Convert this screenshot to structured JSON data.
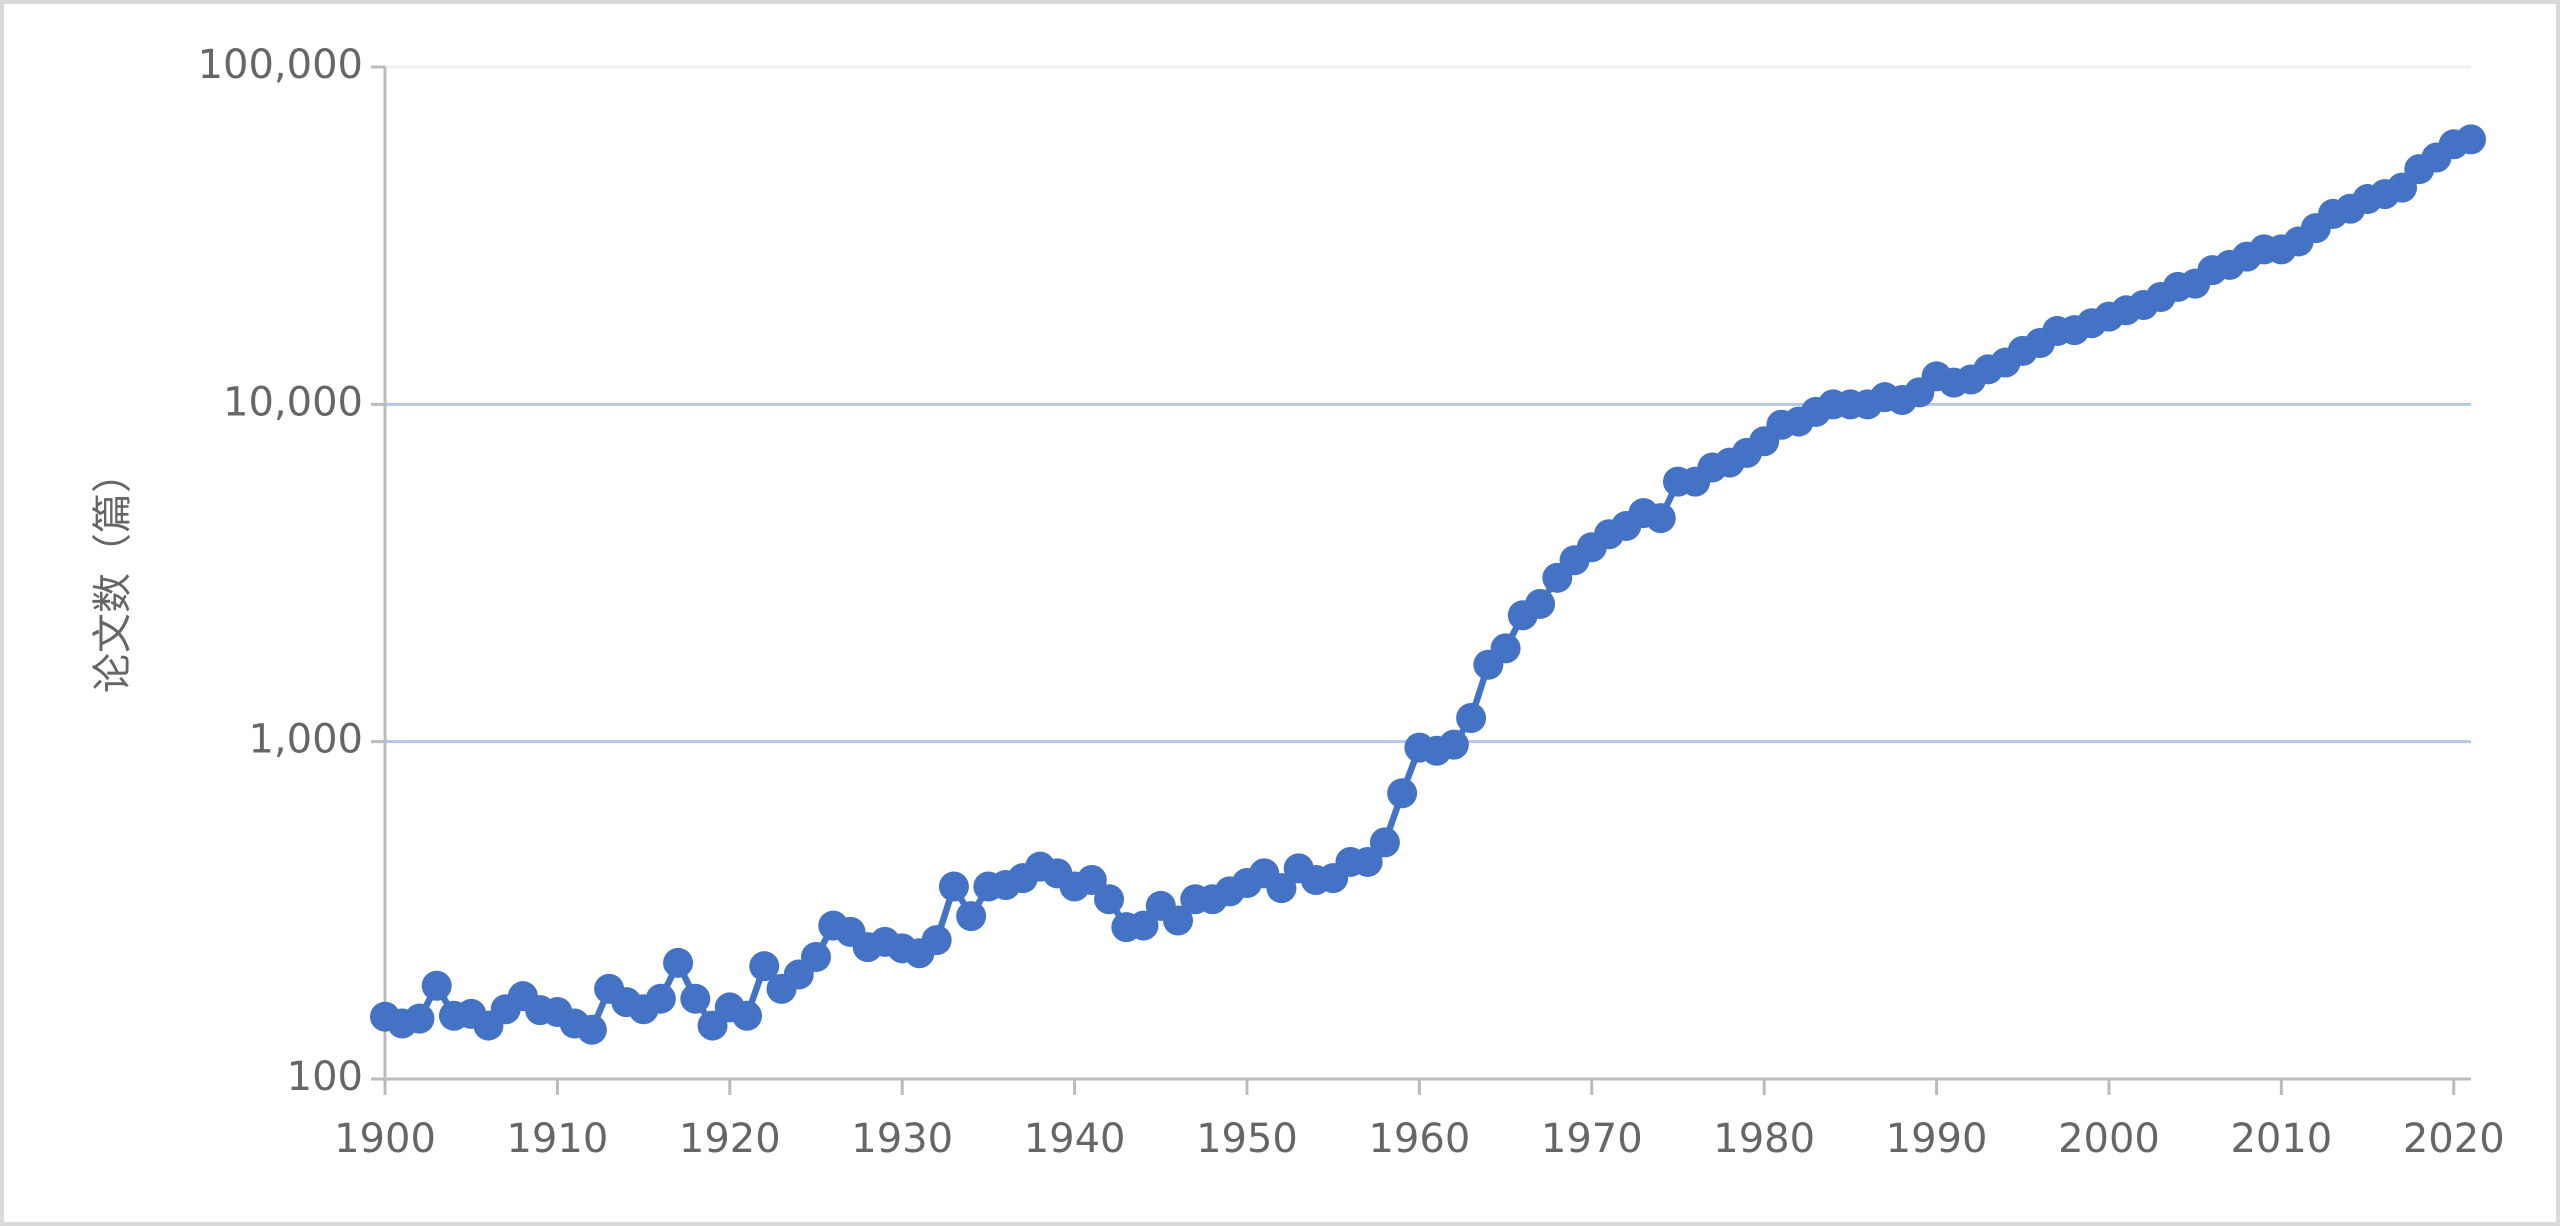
{
  "chart_data": {
    "type": "line",
    "ylabel": "论文数（篇）",
    "log_y": true,
    "grid": true,
    "color": "#4472c4",
    "x": [
      1900,
      1901,
      1902,
      1903,
      1904,
      1905,
      1906,
      1907,
      1908,
      1909,
      1910,
      1911,
      1912,
      1913,
      1914,
      1915,
      1916,
      1917,
      1918,
      1919,
      1920,
      1921,
      1922,
      1923,
      1924,
      1925,
      1926,
      1927,
      1928,
      1929,
      1930,
      1931,
      1932,
      1933,
      1934,
      1935,
      1936,
      1937,
      1938,
      1939,
      1940,
      1941,
      1942,
      1943,
      1944,
      1945,
      1946,
      1947,
      1948,
      1949,
      1950,
      1951,
      1952,
      1953,
      1954,
      1955,
      1956,
      1957,
      1958,
      1959,
      1960,
      1961,
      1962,
      1963,
      1964,
      1965,
      1966,
      1967,
      1968,
      1969,
      1970,
      1971,
      1972,
      1973,
      1974,
      1975,
      1976,
      1977,
      1978,
      1979,
      1980,
      1981,
      1982,
      1983,
      1984,
      1985,
      1986,
      1987,
      1988,
      1989,
      1990,
      1991,
      1992,
      1993,
      1994,
      1995,
      1996,
      1997,
      1998,
      1999,
      2000,
      2001,
      2002,
      2003,
      2004,
      2005,
      2006,
      2007,
      2008,
      2009,
      2010,
      2011,
      2012,
      2013,
      2014,
      2015,
      2016,
      2017,
      2018,
      2019,
      2020,
      2021
    ],
    "values": [
      153,
      146,
      151,
      189,
      154,
      156,
      144,
      161,
      176,
      160,
      158,
      146,
      140,
      185,
      169,
      161,
      173,
      221,
      173,
      144,
      163,
      154,
      216,
      185,
      204,
      230,
      285,
      273,
      246,
      255,
      244,
      236,
      258,
      372,
      304,
      372,
      376,
      394,
      426,
      407,
      372,
      389,
      341,
      282,
      285,
      326,
      295,
      341,
      341,
      360,
      381,
      407,
      368,
      421,
      389,
      394,
      440,
      440,
      503,
      703,
      960,
      940,
      980,
      1175,
      1690,
      1890,
      2370,
      2560,
      3060,
      3450,
      3770,
      4120,
      4360,
      4760,
      4600,
      5900,
      5900,
      6500,
      6720,
      7180,
      7770,
      8700,
      8890,
      9500,
      10000,
      10000,
      10000,
      10500,
      10300,
      10850,
      12100,
      11600,
      11850,
      12700,
      13300,
      14400,
      15200,
      16500,
      16600,
      17400,
      18200,
      19000,
      19700,
      20800,
      22300,
      22800,
      25000,
      25900,
      27400,
      28800,
      28800,
      30400,
      33300,
      36700,
      38000,
      40600,
      42000,
      43900,
      49800,
      53900,
      59000,
      61000
    ],
    "xlim": [
      1900,
      2021
    ],
    "xticks": [
      1900,
      1910,
      1920,
      1930,
      1940,
      1950,
      1960,
      1970,
      1980,
      1990,
      2000,
      2010,
      2020
    ],
    "ylim": [
      100,
      100000
    ],
    "yticks": [
      100,
      {
        "value": 1000,
        "label": "1,000"
      },
      {
        "value": 10000,
        "label": "10,000"
      },
      {
        "value": 100000,
        "label": "100,000"
      }
    ]
  }
}
